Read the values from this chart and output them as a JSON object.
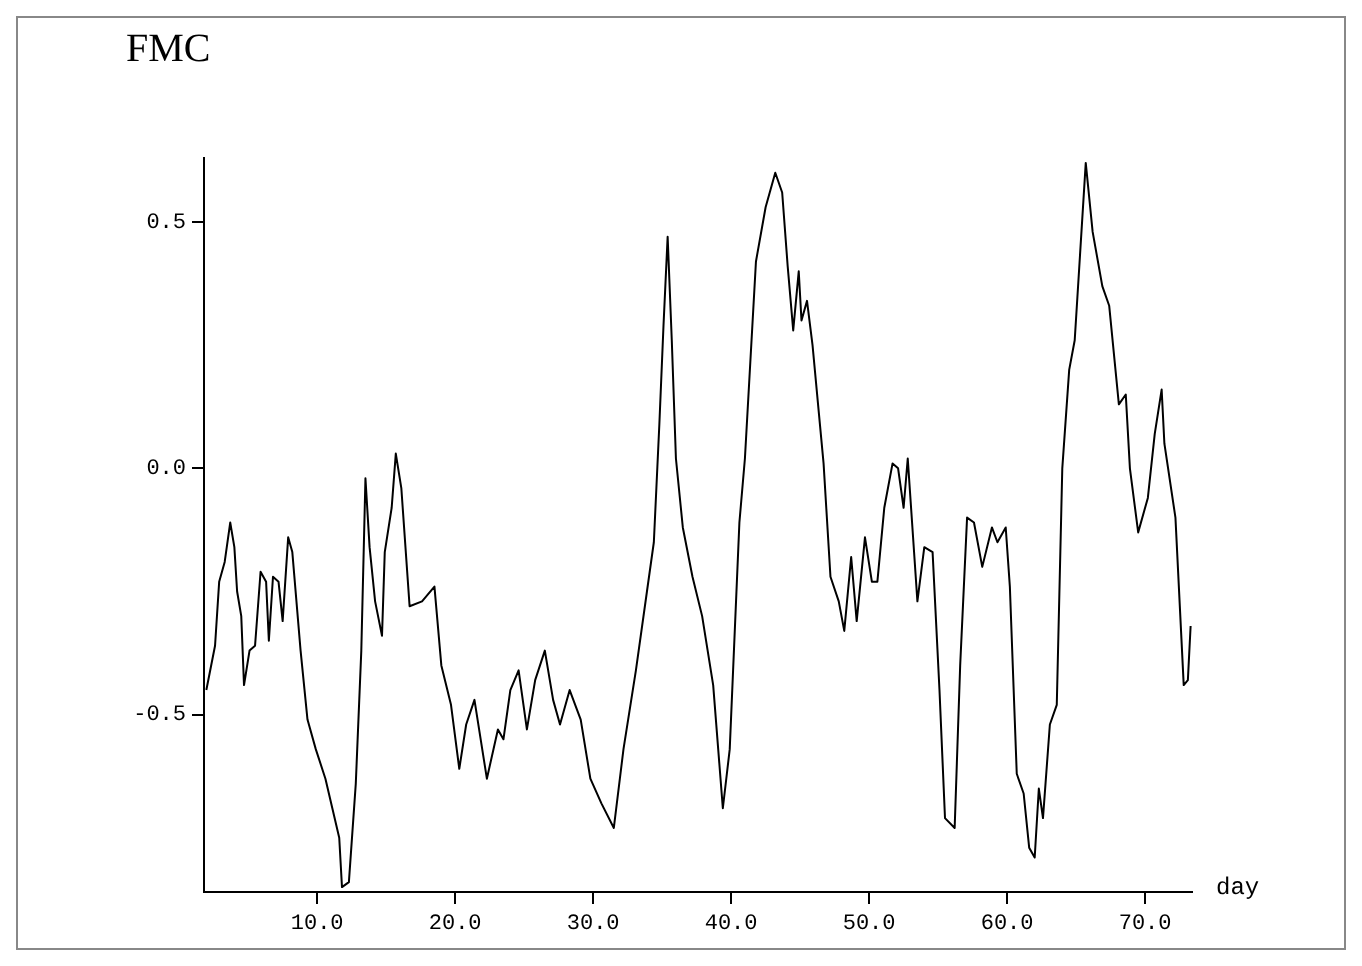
{
  "chart_data": {
    "type": "line",
    "title": "FMC",
    "xlabel": "day",
    "x": [
      1.97,
      2.6,
      2.9,
      3.3,
      3.7,
      4.0,
      4.2,
      4.5,
      4.7,
      5.1,
      5.5,
      5.9,
      6.3,
      6.5,
      6.8,
      7.2,
      7.5,
      7.9,
      8.2,
      8.8,
      9.3,
      9.9,
      10.6,
      11.1,
      11.6,
      11.8,
      12.3,
      12.8,
      13.2,
      13.5,
      13.8,
      14.2,
      14.7,
      14.9,
      15.4,
      15.7,
      16.1,
      16.7,
      17.6,
      18.5,
      19.0,
      19.7,
      20.3,
      20.8,
      21.4,
      22.3,
      23.1,
      23.5,
      24.0,
      24.6,
      25.2,
      25.8,
      26.5,
      27.1,
      27.6,
      28.3,
      29.1,
      29.8,
      30.6,
      31.5,
      32.2,
      33.1,
      33.9,
      34.4,
      34.8,
      35.1,
      35.4,
      35.7,
      36.0,
      36.5,
      37.2,
      37.9,
      38.7,
      39.4,
      39.9,
      40.6,
      41.0,
      41.8,
      42.5,
      43.2,
      43.7,
      44.1,
      44.5,
      44.9,
      45.1,
      45.5,
      45.9,
      46.3,
      46.7,
      47.2,
      47.8,
      48.2,
      48.7,
      49.1,
      49.7,
      50.2,
      50.6,
      51.1,
      51.7,
      52.1,
      52.5,
      52.8,
      53.5,
      54.0,
      54.6,
      55.1,
      55.5,
      56.2,
      56.6,
      57.1,
      57.6,
      58.2,
      58.9,
      59.3,
      59.9,
      60.2,
      60.7,
      61.2,
      61.6,
      62.0,
      62.3,
      62.6,
      63.1,
      63.6,
      64.0,
      64.5,
      64.9,
      65.7,
      66.2,
      66.9,
      67.4,
      68.1,
      68.6,
      68.9,
      69.5,
      70.2,
      70.7,
      71.2,
      71.4,
      72.2,
      72.8,
      73.1,
      73.3
    ],
    "series": [
      {
        "color": "#000000",
        "values": [
          -0.45,
          -0.36,
          -0.23,
          -0.19,
          -0.11,
          -0.16,
          -0.25,
          -0.3,
          -0.44,
          -0.37,
          -0.36,
          -0.21,
          -0.23,
          -0.35,
          -0.22,
          -0.23,
          -0.31,
          -0.14,
          -0.17,
          -0.37,
          -0.51,
          -0.57,
          -0.63,
          -0.69,
          -0.75,
          -0.85,
          -0.84,
          -0.64,
          -0.37,
          -0.02,
          -0.16,
          -0.27,
          -0.34,
          -0.17,
          -0.08,
          0.03,
          -0.04,
          -0.28,
          -0.27,
          -0.24,
          -0.4,
          -0.48,
          -0.61,
          -0.52,
          -0.47,
          -0.63,
          -0.53,
          -0.55,
          -0.45,
          -0.41,
          -0.53,
          -0.43,
          -0.37,
          -0.47,
          -0.52,
          -0.45,
          -0.51,
          -0.63,
          -0.68,
          -0.73,
          -0.57,
          -0.41,
          -0.25,
          -0.15,
          0.09,
          0.29,
          0.47,
          0.26,
          0.02,
          -0.12,
          -0.22,
          -0.3,
          -0.44,
          -0.69,
          -0.57,
          -0.11,
          0.02,
          0.42,
          0.53,
          0.6,
          0.56,
          0.41,
          0.28,
          0.4,
          0.3,
          0.34,
          0.25,
          0.13,
          0.01,
          -0.22,
          -0.27,
          -0.33,
          -0.18,
          -0.31,
          -0.14,
          -0.23,
          -0.23,
          -0.08,
          0.01,
          0.0,
          -0.08,
          0.02,
          -0.27,
          -0.16,
          -0.17,
          -0.45,
          -0.71,
          -0.73,
          -0.4,
          -0.1,
          -0.11,
          -0.2,
          -0.12,
          -0.15,
          -0.12,
          -0.24,
          -0.62,
          -0.66,
          -0.77,
          -0.79,
          -0.65,
          -0.71,
          -0.52,
          -0.48,
          0.0,
          0.2,
          0.26,
          0.62,
          0.48,
          0.37,
          0.33,
          0.13,
          0.15,
          0.0,
          -0.13,
          -0.06,
          0.07,
          0.16,
          0.05,
          -0.1,
          -0.44,
          -0.43,
          -0.32
        ]
      }
    ],
    "xlim": [
      1.8,
      73.4
    ],
    "ylim": [
      -0.86,
      0.63
    ],
    "xticks": [
      {
        "value": 10,
        "label": "10.0"
      },
      {
        "value": 20,
        "label": "20.0"
      },
      {
        "value": 30,
        "label": "30.0"
      },
      {
        "value": 40,
        "label": "40.0"
      },
      {
        "value": 50,
        "label": "50.0"
      },
      {
        "value": 60,
        "label": "60.0"
      },
      {
        "value": 70,
        "label": "70.0"
      }
    ],
    "yticks": [
      {
        "value": -0.5,
        "label": "-0.5"
      },
      {
        "value": 0,
        "label": "0.0"
      },
      {
        "value": 0.5,
        "label": "0.5"
      }
    ],
    "marker": "none",
    "line_style": "solid"
  }
}
